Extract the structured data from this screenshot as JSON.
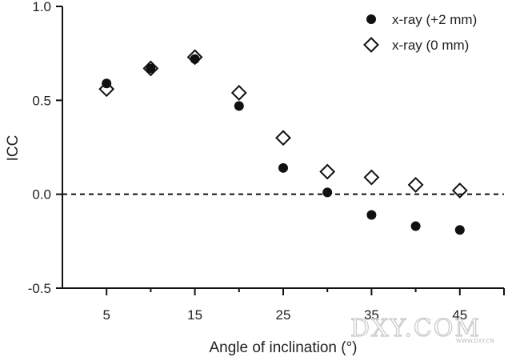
{
  "chart_data": {
    "type": "scatter",
    "title": "",
    "xlabel": "Angle of inclination (°)",
    "ylabel": "ICC",
    "xlim": [
      0,
      50
    ],
    "ylim": [
      -0.5,
      1.0
    ],
    "x_ticks": [
      5,
      15,
      25,
      35,
      45
    ],
    "x_tick_labels": [
      "5",
      "15",
      "25",
      "35",
      "45"
    ],
    "x_minor_ticks": [
      10,
      20,
      30,
      40
    ],
    "y_ticks": [
      -0.5,
      0.0,
      0.5,
      1.0
    ],
    "y_tick_labels": [
      "-0.5",
      "0.0",
      "0.5",
      "1.0"
    ],
    "grid": false,
    "reference_line": {
      "y": 0.0,
      "style": "dashed"
    },
    "legend_position": "top-right",
    "series": [
      {
        "name": "x-ray (+2 mm)",
        "marker": "filled-circle",
        "color": "#111111",
        "x": [
          5,
          10,
          15,
          20,
          25,
          30,
          35,
          40,
          45
        ],
        "y": [
          0.59,
          0.67,
          0.72,
          0.47,
          0.14,
          0.01,
          -0.11,
          -0.17,
          -0.19
        ]
      },
      {
        "name": "x-ray (0 mm)",
        "marker": "open-diamond",
        "color": "#111111",
        "x": [
          5,
          10,
          15,
          20,
          25,
          30,
          35,
          40,
          45
        ],
        "y": [
          0.56,
          0.67,
          0.73,
          0.54,
          0.3,
          0.12,
          0.09,
          0.05,
          0.02
        ]
      }
    ]
  },
  "watermark": {
    "text": "DXY.COM",
    "subtext": "WWW.DXY.CN"
  }
}
